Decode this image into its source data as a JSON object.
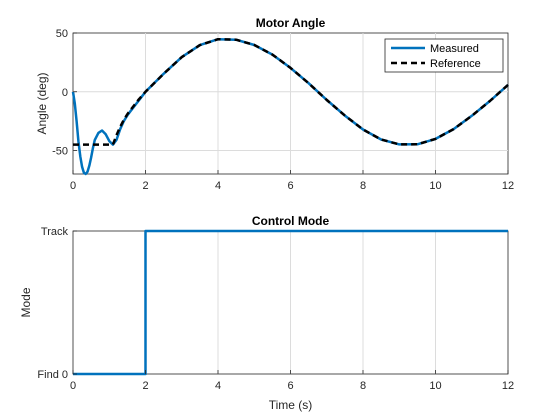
{
  "chart_data": [
    {
      "type": "line",
      "title": "Motor Angle",
      "xlabel": "",
      "ylabel": "Angle (deg)",
      "xlim": [
        0,
        12
      ],
      "ylim": [
        -70,
        50
      ],
      "xticks": [
        0,
        2,
        4,
        6,
        8,
        10,
        12
      ],
      "yticks": [
        50,
        0,
        -50
      ],
      "grid": true,
      "legend": "top-right",
      "series": [
        {
          "name": "Measured",
          "color": "#0072BD",
          "style": "solid",
          "x": [
            0,
            0.05,
            0.1,
            0.15,
            0.2,
            0.25,
            0.3,
            0.35,
            0.4,
            0.45,
            0.5,
            0.55,
            0.6,
            0.7,
            0.8,
            0.9,
            1.0,
            1.1,
            1.2,
            1.3,
            1.4,
            1.5,
            1.6,
            1.8,
            2.0,
            2.5,
            3.0,
            3.5,
            4.0,
            4.5,
            5.0,
            5.5,
            6.0,
            6.5,
            7.0,
            7.5,
            8.0,
            8.5,
            9.0,
            9.5,
            10.0,
            10.5,
            11.0,
            11.5,
            12.0
          ],
          "y": [
            0,
            -10,
            -25,
            -42,
            -55,
            -64,
            -69,
            -70,
            -68,
            -63,
            -56,
            -48,
            -41,
            -35,
            -33,
            -36,
            -42,
            -45,
            -41,
            -32,
            -25,
            -20,
            -16,
            -8,
            0,
            15.3,
            29.5,
            39.7,
            44.7,
            44.3,
            39.8,
            31.6,
            20.3,
            7.3,
            -7.0,
            -20.3,
            -32.1,
            -40.6,
            -44.8,
            -44.7,
            -40.1,
            -31.8,
            -20.5,
            -7.9,
            5.8
          ]
        },
        {
          "name": "Reference",
          "color": "#000000",
          "style": "dashed",
          "x": [
            0,
            0.5,
            1.0,
            1.1,
            1.2,
            1.3,
            1.4,
            1.5,
            1.6,
            1.8,
            2.0,
            2.5,
            3.0,
            3.5,
            4.0,
            4.5,
            5.0,
            5.5,
            6.0,
            6.5,
            7.0,
            7.5,
            8.0,
            8.5,
            9.0,
            9.5,
            10.0,
            10.5,
            11.0,
            11.5,
            12.0
          ],
          "y": [
            -45,
            -45,
            -45,
            -45,
            -37,
            -30,
            -24,
            -19,
            -15,
            -7,
            0,
            15.3,
            29.5,
            39.7,
            44.7,
            44.3,
            39.8,
            31.6,
            20.3,
            7.3,
            -7.0,
            -20.3,
            -32.1,
            -40.6,
            -44.8,
            -44.7,
            -40.1,
            -31.8,
            -20.5,
            -7.9,
            5.8
          ]
        }
      ]
    },
    {
      "type": "line",
      "title": "Control Mode",
      "xlabel": "Time (s)",
      "ylabel": "Mode",
      "xlim": [
        0,
        12
      ],
      "ylim": [
        0,
        1
      ],
      "xticks": [
        0,
        2,
        4,
        6,
        8,
        10,
        12
      ],
      "yticks": [
        {
          "value": 1,
          "label": "Track"
        },
        {
          "value": 0,
          "label": "Find 0"
        }
      ],
      "grid": true,
      "series": [
        {
          "color": "#0072BD",
          "style": "solid",
          "x": [
            0,
            2.0,
            2.0,
            12
          ],
          "y": [
            0,
            0,
            1,
            1
          ]
        }
      ]
    }
  ]
}
